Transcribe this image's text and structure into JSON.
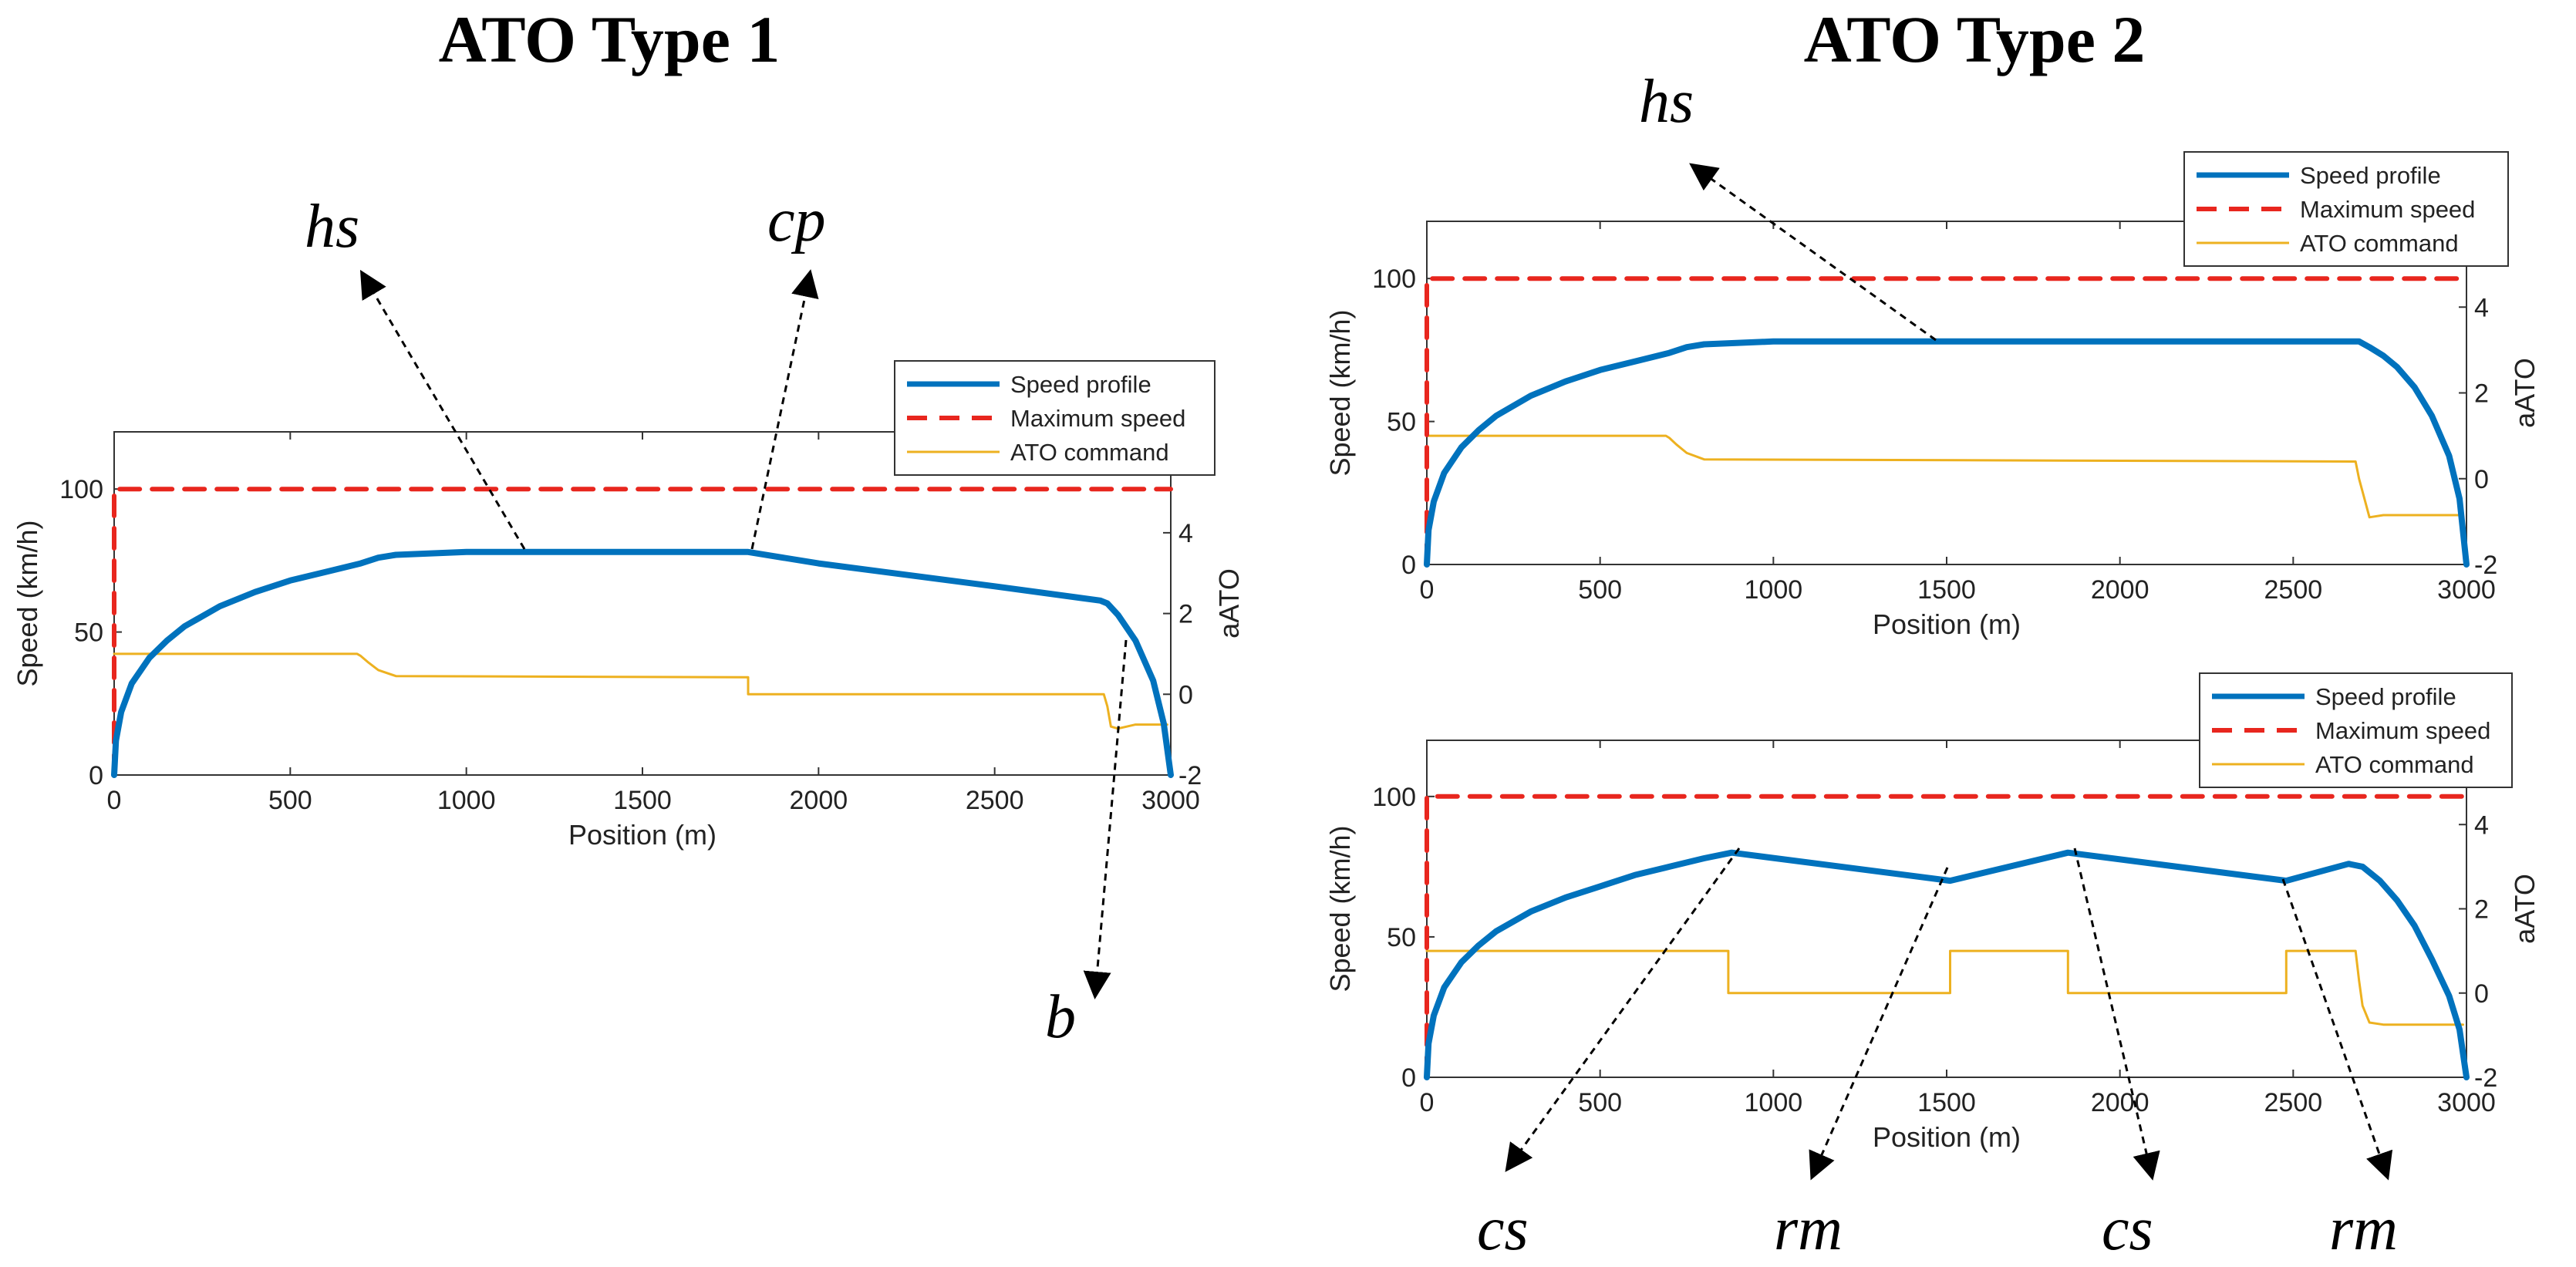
{
  "figure": {
    "left_title": "ATO Type 1",
    "right_title": "ATO Type 2"
  },
  "colors": {
    "speed": "#0072BD",
    "max": "#E8261E",
    "ato": "#EDB120",
    "axis": "#333333"
  },
  "chart_data": [
    {
      "id": "type1",
      "type": "line",
      "xlabel": "Position (m)",
      "ylabel": "Speed (km/h)",
      "y2label": "aATO",
      "xlim": [
        0,
        3000
      ],
      "ylim": [
        0,
        120
      ],
      "y2lim": [
        -2,
        6.5
      ],
      "xticks": [
        0,
        500,
        1000,
        1500,
        2000,
        2500,
        3000
      ],
      "yticks": [
        0,
        50,
        100
      ],
      "y2ticks": [
        -2,
        0,
        2,
        4
      ],
      "legend": [
        "Speed profile",
        "Maximum speed",
        "ATO command"
      ],
      "legend_position": "top-right",
      "series": [
        {
          "name": "Speed profile",
          "axis": "left",
          "x": [
            0,
            5,
            20,
            50,
            100,
            150,
            200,
            300,
            400,
            500,
            600,
            700,
            750,
            800,
            1000,
            1500,
            1800,
            2000,
            2500,
            2800,
            2820,
            2850,
            2900,
            2950,
            2980,
            3000
          ],
          "y": [
            0,
            12,
            22,
            32,
            41,
            47,
            52,
            59,
            64,
            68,
            71,
            74,
            76,
            77,
            78,
            78,
            78,
            74,
            66,
            61,
            60,
            56,
            47,
            33,
            18,
            0
          ]
        },
        {
          "name": "Maximum speed",
          "axis": "left",
          "x": [
            0,
            0,
            3000
          ],
          "y": [
            0,
            100,
            100
          ]
        },
        {
          "name": "ATO command",
          "axis": "right",
          "x": [
            0,
            690,
            700,
            720,
            750,
            800,
            1800,
            1800,
            2810,
            2820,
            2830,
            2850,
            2900,
            2950,
            2990
          ],
          "y": [
            1.0,
            1.0,
            0.95,
            0.8,
            0.6,
            0.45,
            0.42,
            0,
            0,
            -0.3,
            -0.8,
            -0.85,
            -0.75,
            -0.75,
            -0.75
          ]
        }
      ],
      "annotations": [
        "hs",
        "cp",
        "b"
      ]
    },
    {
      "id": "type2_top",
      "type": "line",
      "xlabel": "Position (m)",
      "ylabel": "Speed (km/h)",
      "y2label": "aATO",
      "xlim": [
        0,
        3000
      ],
      "ylim": [
        0,
        120
      ],
      "y2lim": [
        -2,
        6
      ],
      "xticks": [
        0,
        500,
        1000,
        1500,
        2000,
        2500,
        3000
      ],
      "yticks": [
        0,
        50,
        100
      ],
      "y2ticks": [
        -2,
        0,
        2,
        4
      ],
      "legend": [
        "Speed profile",
        "Maximum speed",
        "ATO command"
      ],
      "legend_position": "top-right",
      "series": [
        {
          "name": "Speed profile",
          "axis": "left",
          "x": [
            0,
            5,
            20,
            50,
            100,
            150,
            200,
            300,
            400,
            500,
            600,
            700,
            750,
            800,
            1000,
            1500,
            2000,
            2500,
            2690,
            2720,
            2760,
            2800,
            2850,
            2900,
            2950,
            2980,
            3000
          ],
          "y": [
            0,
            12,
            22,
            32,
            41,
            47,
            52,
            59,
            64,
            68,
            71,
            74,
            76,
            77,
            78,
            78,
            78,
            78,
            78,
            76,
            73,
            69,
            62,
            52,
            38,
            23,
            0
          ]
        },
        {
          "name": "Maximum speed",
          "axis": "left",
          "x": [
            0,
            0,
            3000
          ],
          "y": [
            0,
            100,
            100
          ]
        },
        {
          "name": "ATO command",
          "axis": "right",
          "x": [
            0,
            690,
            700,
            720,
            750,
            800,
            2680,
            2690,
            2700,
            2720,
            2760,
            2800,
            2990
          ],
          "y": [
            1.0,
            1.0,
            0.95,
            0.8,
            0.6,
            0.45,
            0.4,
            0,
            -0.3,
            -0.9,
            -0.85,
            -0.85,
            -0.85
          ]
        }
      ],
      "annotations": [
        "hs"
      ]
    },
    {
      "id": "type2_bottom",
      "type": "line",
      "xlabel": "Position (m)",
      "ylabel": "Speed (km/h)",
      "y2label": "aATO",
      "xlim": [
        0,
        3000
      ],
      "ylim": [
        0,
        120
      ],
      "y2lim": [
        -2,
        6
      ],
      "xticks": [
        0,
        500,
        1000,
        1500,
        2000,
        2500,
        3000
      ],
      "yticks": [
        0,
        50,
        100
      ],
      "y2ticks": [
        -2,
        0,
        2,
        4
      ],
      "legend": [
        "Speed profile",
        "Maximum speed",
        "ATO command"
      ],
      "legend_position": "top-right",
      "series": [
        {
          "name": "Speed profile",
          "axis": "left",
          "x": [
            0,
            5,
            20,
            50,
            100,
            150,
            200,
            300,
            400,
            500,
            600,
            700,
            800,
            880,
            1510,
            1850,
            2480,
            2660,
            2700,
            2750,
            2800,
            2850,
            2900,
            2950,
            2980,
            3000
          ],
          "y": [
            0,
            12,
            22,
            32,
            41,
            47,
            52,
            59,
            64,
            68,
            72,
            75,
            78,
            80,
            70,
            80,
            70,
            76,
            75,
            70,
            63,
            54,
            42,
            29,
            17,
            0
          ]
        },
        {
          "name": "Maximum speed",
          "axis": "left",
          "x": [
            0,
            0,
            3000
          ],
          "y": [
            0,
            100,
            100
          ]
        },
        {
          "name": "ATO command",
          "axis": "right",
          "x": [
            0,
            870,
            870,
            1510,
            1510,
            1850,
            1850,
            2480,
            2480,
            2680,
            2690,
            2700,
            2720,
            2760,
            2990
          ],
          "y": [
            1.0,
            1.0,
            0,
            0,
            1.0,
            1.0,
            0,
            0,
            1.0,
            1.0,
            0.3,
            -0.3,
            -0.7,
            -0.75,
            -0.75
          ]
        }
      ],
      "annotations": [
        "cs",
        "rm",
        "cs",
        "rm"
      ]
    }
  ]
}
